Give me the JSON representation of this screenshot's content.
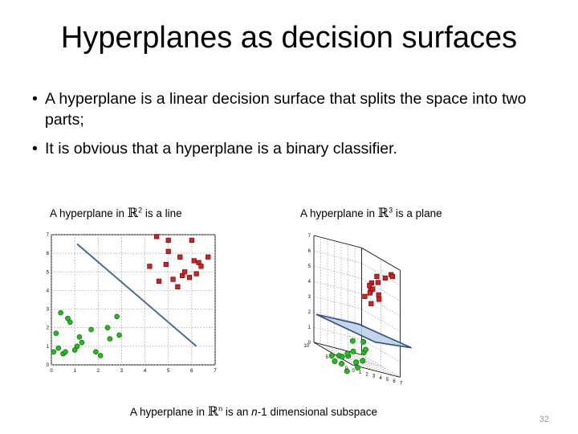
{
  "slide": {
    "title": "Hyperplanes as decision surfaces",
    "bullets": [
      "A hyperplane is a linear decision surface that splits the space into two parts;",
      "It is obvious that a hyperplane is a binary classifier."
    ],
    "caption_left": {
      "before": "A hyperplane in ",
      "symbol": "ℝ",
      "sup": "2",
      "after": " is a line"
    },
    "caption_right": {
      "before": "A hyperplane in ",
      "symbol": "ℝ",
      "sup": "3",
      "after": " is a plane"
    },
    "caption_bottom": {
      "before": "A hyperplane in ",
      "symbol": "ℝ",
      "sup": "n",
      "mid": " is an ",
      "em": "n",
      "after": "-1 dimensional subspace"
    },
    "page_number": "32"
  },
  "chart_data": [
    {
      "type": "scatter",
      "dims": 2,
      "xlim": [
        0,
        7
      ],
      "ylim": [
        0,
        7
      ],
      "x_ticks": [
        "0",
        "1",
        "2",
        "3",
        "4",
        "5",
        "6",
        "7"
      ],
      "y_ticks": [
        "0",
        "1",
        "2",
        "3",
        "4",
        "5",
        "6",
        "7"
      ],
      "grid": true,
      "series": [
        {
          "marker": "circle",
          "color": "#22bb22",
          "points": [
            [
              0.1,
              0.7
            ],
            [
              0.2,
              1.7
            ],
            [
              0.3,
              0.9
            ],
            [
              0.4,
              2.8
            ],
            [
              0.5,
              0.6
            ],
            [
              0.6,
              0.7
            ],
            [
              0.7,
              2.5
            ],
            [
              0.8,
              2.3
            ],
            [
              1.0,
              0.8
            ],
            [
              1.1,
              1.0
            ],
            [
              1.2,
              1.5
            ],
            [
              1.3,
              1.2
            ],
            [
              1.7,
              1.9
            ],
            [
              1.9,
              0.7
            ],
            [
              2.1,
              0.5
            ],
            [
              2.4,
              2.0
            ],
            [
              2.5,
              1.4
            ],
            [
              2.8,
              2.6
            ],
            [
              2.9,
              1.6
            ]
          ]
        },
        {
          "marker": "square",
          "color": "#cc2222",
          "points": [
            [
              4.2,
              5.3
            ],
            [
              4.5,
              6.9
            ],
            [
              4.6,
              4.5
            ],
            [
              4.9,
              5.4
            ],
            [
              5.0,
              6.1
            ],
            [
              5.0,
              6.7
            ],
            [
              5.2,
              4.6
            ],
            [
              5.4,
              4.2
            ],
            [
              5.5,
              5.8
            ],
            [
              5.6,
              4.8
            ],
            [
              5.7,
              5.0
            ],
            [
              5.9,
              4.7
            ],
            [
              6.0,
              6.7
            ],
            [
              6.1,
              5.6
            ],
            [
              6.2,
              4.9
            ],
            [
              6.3,
              5.5
            ],
            [
              6.4,
              5.3
            ],
            [
              6.7,
              5.8
            ]
          ]
        }
      ],
      "separator_line": [
        [
          1.1,
          6.5
        ],
        [
          6.2,
          1.0
        ]
      ]
    },
    {
      "type": "scatter",
      "dims": 3,
      "x_ticks": [
        "0",
        "1",
        "2",
        "3",
        "4",
        "5",
        "6",
        "7"
      ],
      "y_ticks": [
        "0",
        "5",
        "10"
      ],
      "z_ticks": [
        "0",
        "1",
        "2",
        "3",
        "4",
        "5",
        "6",
        "7"
      ],
      "grid": true,
      "plane_z": 2,
      "plane_color": "#b8cce8",
      "series": [
        {
          "marker": "circle",
          "color": "#22bb22",
          "points": [
            [
              1.5,
              8,
              -0.4
            ],
            [
              2.0,
              7,
              -0.2
            ],
            [
              2.5,
              9,
              -0.8
            ],
            [
              1.8,
              6,
              -0.6
            ],
            [
              3.0,
              8,
              -0.3
            ],
            [
              2.2,
              5,
              0.1
            ],
            [
              3.5,
              6,
              0.4
            ],
            [
              2.8,
              4,
              -0.1
            ],
            [
              4.0,
              7,
              1.0
            ],
            [
              3.2,
              3,
              0.2
            ],
            [
              4.5,
              5,
              0.6
            ],
            [
              2.6,
              6,
              -1.0
            ],
            [
              3.8,
              8,
              0.0
            ],
            [
              4.2,
              4,
              0.9
            ],
            [
              5.0,
              6,
              1.2
            ],
            [
              3.6,
              5,
              -0.5
            ]
          ]
        },
        {
          "marker": "square",
          "color": "#cc2222",
          "points": [
            [
              5.5,
              5,
              4.8
            ],
            [
              6.0,
              4,
              5.5
            ],
            [
              5.2,
              6,
              4.2
            ],
            [
              6.5,
              3,
              6.0
            ],
            [
              5.8,
              5,
              4.9
            ],
            [
              6.2,
              6,
              5.2
            ],
            [
              5.0,
              4,
              4.0
            ],
            [
              6.8,
              2,
              6.4
            ],
            [
              5.6,
              3,
              4.5
            ],
            [
              6.4,
              5,
              5.8
            ],
            [
              5.4,
              5,
              4.6
            ],
            [
              6.1,
              4,
              4.7
            ],
            [
              7.0,
              2,
              6.3
            ],
            [
              5.9,
              6,
              5.0
            ]
          ]
        }
      ]
    }
  ]
}
